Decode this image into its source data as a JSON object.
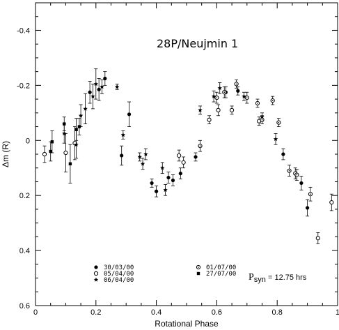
{
  "chart_data": {
    "type": "scatter",
    "title": "28P/Neujmin 1",
    "xlabel": "Rotational Phase",
    "ylabel": "Δm (R)",
    "xlim": [
      0,
      1
    ],
    "ylim": [
      0.6,
      -0.5
    ],
    "y_inverted": true,
    "x_ticks": [
      0,
      0.2,
      0.4,
      0.6,
      0.8,
      1
    ],
    "x_tick_labels": [
      "0",
      "0.2",
      "0.4",
      "0.6",
      "0.8",
      "1"
    ],
    "y_ticks": [
      -0.4,
      -0.2,
      0,
      0.2,
      0.4,
      0.6
    ],
    "y_tick_labels": [
      "-0.4",
      "-0.2",
      "0",
      "0.2",
      "0.4",
      "0.6"
    ],
    "annotation": {
      "main": "P",
      "sub": "syn",
      "rest": " = 12.75 hrs"
    },
    "legend": [
      {
        "label": "30/03/00",
        "marker": "filled-circle"
      },
      {
        "label": "05/04/00",
        "marker": "open-circle"
      },
      {
        "label": "06/04/00",
        "marker": "filled-star"
      },
      {
        "label": "01/07/00",
        "marker": "dotted-circle"
      },
      {
        "label": "27/07/00",
        "marker": "filled-square"
      }
    ],
    "series": [
      {
        "name": "30/03/00",
        "marker": "filled-circle",
        "points": [
          {
            "x": 0.18,
            "y": -0.175,
            "err": 0.04
          },
          {
            "x": 0.21,
            "y": -0.185,
            "err": 0.04
          },
          {
            "x": 0.23,
            "y": -0.225,
            "err": 0.025
          },
          {
            "x": 0.285,
            "y": 0.055,
            "err": 0.035
          },
          {
            "x": 0.31,
            "y": -0.095,
            "err": 0.045
          },
          {
            "x": 0.385,
            "y": 0.155,
            "err": 0.015
          },
          {
            "x": 0.4,
            "y": 0.185,
            "err": 0.02
          },
          {
            "x": 0.44,
            "y": 0.135,
            "err": 0.02
          },
          {
            "x": 0.455,
            "y": 0.145,
            "err": 0.02
          },
          {
            "x": 0.48,
            "y": 0.12,
            "err": 0.02
          },
          {
            "x": 0.53,
            "y": 0.06,
            "err": 0.015
          },
          {
            "x": 0.63,
            "y": -0.175,
            "err": 0.02
          },
          {
            "x": 0.67,
            "y": -0.18,
            "err": 0.015
          },
          {
            "x": 0.82,
            "y": 0.05,
            "err": 0.02
          },
          {
            "x": 0.88,
            "y": 0.155,
            "err": 0.025
          },
          {
            "x": 0.9,
            "y": 0.245,
            "err": 0.03
          }
        ]
      },
      {
        "name": "05/04/00",
        "marker": "open-circle",
        "points": [
          {
            "x": 0.03,
            "y": 0.05,
            "err": 0.03
          },
          {
            "x": 0.1,
            "y": 0.045,
            "err": 0.07
          },
          {
            "x": 0.13,
            "y": 0.01,
            "err": 0.06
          },
          {
            "x": 0.475,
            "y": 0.055,
            "err": 0.02
          },
          {
            "x": 0.49,
            "y": 0.08,
            "err": 0.02
          },
          {
            "x": 0.575,
            "y": -0.075,
            "err": 0.015
          },
          {
            "x": 0.605,
            "y": -0.11,
            "err": 0.02
          },
          {
            "x": 0.65,
            "y": -0.11,
            "err": 0.015
          },
          {
            "x": 0.74,
            "y": -0.07,
            "err": 0.015
          },
          {
            "x": 0.86,
            "y": 0.12,
            "err": 0.02
          },
          {
            "x": 0.935,
            "y": 0.355,
            "err": 0.02
          },
          {
            "x": 0.98,
            "y": 0.225,
            "err": 0.03
          }
        ]
      },
      {
        "name": "06/04/00",
        "marker": "filled-star",
        "points": [
          {
            "x": 0.095,
            "y": -0.025,
            "err": 0.035
          },
          {
            "x": 0.135,
            "y": 0.015,
            "err": 0.05
          },
          {
            "x": 0.15,
            "y": -0.09,
            "err": 0.04
          },
          {
            "x": 0.165,
            "y": -0.115,
            "err": 0.055
          },
          {
            "x": 0.19,
            "y": -0.16,
            "err": 0.045
          },
          {
            "x": 0.2,
            "y": -0.205,
            "err": 0.055
          },
          {
            "x": 0.22,
            "y": -0.195,
            "err": 0.025
          },
          {
            "x": 0.27,
            "y": -0.195,
            "err": 0.01
          },
          {
            "x": 0.29,
            "y": -0.02,
            "err": 0.015
          },
          {
            "x": 0.345,
            "y": 0.06,
            "err": 0.015
          },
          {
            "x": 0.355,
            "y": 0.085,
            "err": 0.02
          },
          {
            "x": 0.365,
            "y": 0.05,
            "err": 0.02
          },
          {
            "x": 0.42,
            "y": 0.1,
            "err": 0.02
          },
          {
            "x": 0.43,
            "y": 0.18,
            "err": 0.02
          },
          {
            "x": 0.545,
            "y": -0.11,
            "err": 0.015
          },
          {
            "x": 0.59,
            "y": -0.16,
            "err": 0.02
          },
          {
            "x": 0.61,
            "y": -0.19,
            "err": 0.02
          },
          {
            "x": 0.69,
            "y": -0.16,
            "err": 0.015
          },
          {
            "x": 0.75,
            "y": -0.085,
            "err": 0.015
          },
          {
            "x": 0.795,
            "y": -0.005,
            "err": 0.02
          }
        ]
      },
      {
        "name": "01/07/00",
        "marker": "dotted-circle",
        "points": [
          {
            "x": 0.545,
            "y": 0.02,
            "err": 0.02
          },
          {
            "x": 0.6,
            "y": -0.155,
            "err": 0.02
          },
          {
            "x": 0.625,
            "y": -0.175,
            "err": 0.02
          },
          {
            "x": 0.665,
            "y": -0.205,
            "err": 0.015
          },
          {
            "x": 0.7,
            "y": -0.155,
            "err": 0.02
          },
          {
            "x": 0.735,
            "y": -0.135,
            "err": 0.015
          },
          {
            "x": 0.75,
            "y": -0.075,
            "err": 0.015
          },
          {
            "x": 0.785,
            "y": -0.145,
            "err": 0.015
          },
          {
            "x": 0.805,
            "y": -0.065,
            "err": 0.015
          },
          {
            "x": 0.84,
            "y": 0.11,
            "err": 0.02
          },
          {
            "x": 0.865,
            "y": 0.125,
            "err": 0.02
          },
          {
            "x": 0.91,
            "y": 0.195,
            "err": 0.025
          }
        ]
      },
      {
        "name": "27/07/00",
        "marker": "filled-square",
        "points": [
          {
            "x": 0.05,
            "y": 0.04,
            "err": 0.035
          },
          {
            "x": 0.055,
            "y": 0.005,
            "err": 0.04
          },
          {
            "x": 0.095,
            "y": -0.06,
            "err": 0.025
          },
          {
            "x": 0.115,
            "y": 0.085,
            "err": 0.07
          },
          {
            "x": 0.135,
            "y": -0.04,
            "err": 0.04
          },
          {
            "x": 0.145,
            "y": -0.05,
            "err": 0.03
          }
        ]
      }
    ]
  }
}
